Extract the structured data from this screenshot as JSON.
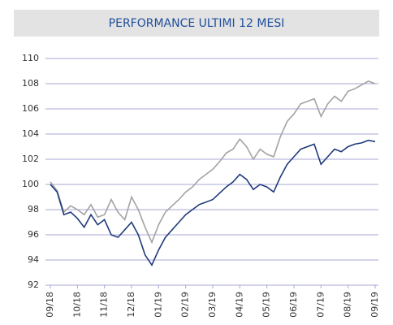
{
  "chart_data": {
    "type": "line",
    "title": "PERFORMANCE ULTIMI 12 MESI",
    "x": [
      0,
      0.25,
      0.5,
      0.75,
      1,
      1.25,
      1.5,
      1.75,
      2,
      2.25,
      2.5,
      2.75,
      3,
      3.25,
      3.5,
      3.75,
      4,
      4.25,
      4.5,
      4.75,
      5,
      5.25,
      5.5,
      5.75,
      6,
      6.25,
      6.5,
      6.75,
      7,
      7.25,
      7.5,
      7.75,
      8,
      8.25,
      8.5,
      8.75,
      9,
      9.25,
      9.5,
      9.75,
      10,
      10.25,
      10.5,
      10.75,
      11,
      11.25,
      11.5,
      11.75,
      12
    ],
    "series": [
      {
        "color": "#a3a3a3",
        "values": [
          100.2,
          99.5,
          97.8,
          98.3,
          98.0,
          97.6,
          98.4,
          97.4,
          97.6,
          98.8,
          97.8,
          97.2,
          99.0,
          98.0,
          96.6,
          95.4,
          96.8,
          97.8,
          98.3,
          98.8,
          99.4,
          99.8,
          100.4,
          100.8,
          101.2,
          101.8,
          102.5,
          102.8,
          103.6,
          103.0,
          102.0,
          102.8,
          102.4,
          102.2,
          103.8,
          105.0,
          105.6,
          106.4,
          106.6,
          106.8,
          105.4,
          106.4,
          107.0,
          106.6,
          107.4,
          107.6,
          107.9,
          108.2,
          108.0
        ]
      },
      {
        "color": "#1f3a7a",
        "values": [
          100.0,
          99.4,
          97.6,
          97.8,
          97.3,
          96.6,
          97.6,
          96.8,
          97.2,
          96.0,
          95.8,
          96.4,
          97.0,
          96.0,
          94.4,
          93.6,
          94.8,
          95.8,
          96.4,
          97.0,
          97.6,
          98.0,
          98.4,
          98.6,
          98.8,
          99.3,
          99.8,
          100.2,
          100.8,
          100.4,
          99.6,
          100.0,
          99.8,
          99.4,
          100.6,
          101.6,
          102.2,
          102.8,
          103.0,
          103.2,
          101.6,
          102.2,
          102.8,
          102.6,
          103.0,
          103.2,
          103.3,
          103.5,
          103.4
        ]
      }
    ],
    "xlim": [
      0,
      12
    ],
    "xticks": [
      {
        "value": 0,
        "label": "09/18"
      },
      {
        "value": 1,
        "label": "10/18"
      },
      {
        "value": 2,
        "label": "11/18"
      },
      {
        "value": 3,
        "label": "12/18"
      },
      {
        "value": 4,
        "label": "01/19"
      },
      {
        "value": 5,
        "label": "02/19"
      },
      {
        "value": 6,
        "label": "03/19"
      },
      {
        "value": 7,
        "label": "04/19"
      },
      {
        "value": 8,
        "label": "05/19"
      },
      {
        "value": 9,
        "label": "06/19"
      },
      {
        "value": 10,
        "label": "07/19"
      },
      {
        "value": 11,
        "label": "08/19"
      },
      {
        "value": 12,
        "label": "09/19"
      }
    ],
    "ylim": [
      92,
      110
    ],
    "yticks": [
      92,
      94,
      96,
      98,
      100,
      102,
      104,
      106,
      108,
      110
    ],
    "grid": true
  }
}
